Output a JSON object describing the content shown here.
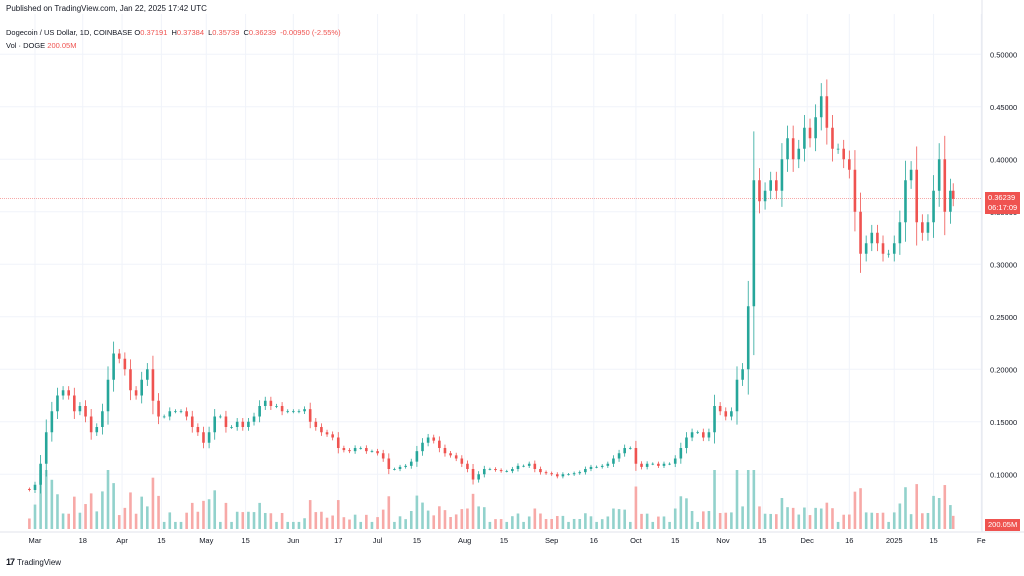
{
  "header": {
    "published": "Published on TradingView.com, Jan 22, 2025 17:42 UTC"
  },
  "legend": {
    "symbol": "Dogecoin / US Dollar, 1D, COINBASE",
    "open_label": "O",
    "open": "0.37191",
    "high_label": "H",
    "high": "0.37384",
    "low_label": "L",
    "low": "0.35739",
    "close_label": "C",
    "close": "0.36239",
    "change": "-0.00950 (-2.55%)",
    "volume_label": "Vol · DOGE",
    "volume": "200.05M"
  },
  "price_tag": {
    "price": "0.36239",
    "countdown": "06:17:09"
  },
  "volume_tag": "200.05M",
  "footer": {
    "logo_mark": "17",
    "logo_text": "TradingView"
  },
  "colors": {
    "up": "#26a69a",
    "down": "#ef5350",
    "up_vol": "#92d2cc",
    "down_vol": "#f7a9a7",
    "grid": "#f0f3fa"
  },
  "chart_data": {
    "type": "candlestick",
    "y_axis_labels": [
      "0.50000",
      "0.45000",
      "0.40000",
      "0.35000",
      "0.30000",
      "0.25000",
      "0.20000",
      "0.15000",
      "0.10000"
    ],
    "y_axis_values": [
      0.5,
      0.45,
      0.4,
      0.35,
      0.3,
      0.25,
      0.2,
      0.15,
      0.1
    ],
    "ylim": [
      0.045,
      0.525
    ],
    "x_axis_labels": [
      "Mar",
      "18",
      "Apr",
      "15",
      "May",
      "15",
      "Jun",
      "17",
      "Jul",
      "15",
      "Aug",
      "15",
      "Sep",
      "16",
      "Oct",
      "15",
      "Nov",
      "15",
      "Dec",
      "16",
      "2025",
      "15",
      "Fe"
    ],
    "x_axis_days": [
      0,
      17,
      31,
      45,
      61,
      75,
      92,
      108,
      122,
      136,
      153,
      167,
      184,
      199,
      214,
      228,
      245,
      259,
      275,
      290,
      306,
      320,
      337
    ],
    "x_start": "2024-03-01",
    "series": [
      {
        "name": "DOGE/USD",
        "points": [
          [
            "2024-02-26",
            0.086
          ],
          [
            "2024-02-28",
            0.085
          ],
          [
            "2024-03-01",
            0.09
          ],
          [
            "2024-03-03",
            0.11
          ],
          [
            "2024-03-05",
            0.14
          ],
          [
            "2024-03-07",
            0.16
          ],
          [
            "2024-03-09",
            0.175
          ],
          [
            "2024-03-11",
            0.18
          ],
          [
            "2024-03-13",
            0.175
          ],
          [
            "2024-03-15",
            0.16
          ],
          [
            "2024-03-17",
            0.165
          ],
          [
            "2024-03-19",
            0.155
          ],
          [
            "2024-03-21",
            0.14
          ],
          [
            "2024-03-23",
            0.145
          ],
          [
            "2024-03-25",
            0.16
          ],
          [
            "2024-03-27",
            0.19
          ],
          [
            "2024-03-29",
            0.215
          ],
          [
            "2024-03-31",
            0.21
          ],
          [
            "2024-04-02",
            0.2
          ],
          [
            "2024-04-04",
            0.18
          ],
          [
            "2024-04-06",
            0.175
          ],
          [
            "2024-04-08",
            0.19
          ],
          [
            "2024-04-10",
            0.2
          ],
          [
            "2024-04-12",
            0.17
          ],
          [
            "2024-04-14",
            0.155
          ],
          [
            "2024-04-16",
            0.155
          ],
          [
            "2024-04-18",
            0.16
          ],
          [
            "2024-04-20",
            0.16
          ],
          [
            "2024-04-22",
            0.16
          ],
          [
            "2024-04-24",
            0.155
          ],
          [
            "2024-04-26",
            0.145
          ],
          [
            "2024-04-28",
            0.14
          ],
          [
            "2024-04-30",
            0.13
          ],
          [
            "2024-05-02",
            0.14
          ],
          [
            "2024-05-04",
            0.155
          ],
          [
            "2024-05-06",
            0.155
          ],
          [
            "2024-05-08",
            0.145
          ],
          [
            "2024-05-10",
            0.145
          ],
          [
            "2024-05-12",
            0.15
          ],
          [
            "2024-05-14",
            0.145
          ],
          [
            "2024-05-16",
            0.15
          ],
          [
            "2024-05-18",
            0.155
          ],
          [
            "2024-05-20",
            0.165
          ],
          [
            "2024-05-22",
            0.17
          ],
          [
            "2024-05-24",
            0.165
          ],
          [
            "2024-05-26",
            0.165
          ],
          [
            "2024-05-28",
            0.16
          ],
          [
            "2024-05-30",
            0.16
          ],
          [
            "2024-06-01",
            0.16
          ],
          [
            "2024-06-03",
            0.16
          ],
          [
            "2024-06-05",
            0.162
          ],
          [
            "2024-06-07",
            0.15
          ],
          [
            "2024-06-09",
            0.145
          ],
          [
            "2024-06-11",
            0.14
          ],
          [
            "2024-06-13",
            0.138
          ],
          [
            "2024-06-15",
            0.135
          ],
          [
            "2024-06-17",
            0.125
          ],
          [
            "2024-06-19",
            0.123
          ],
          [
            "2024-06-21",
            0.122
          ],
          [
            "2024-06-23",
            0.125
          ],
          [
            "2024-06-25",
            0.125
          ],
          [
            "2024-06-27",
            0.122
          ],
          [
            "2024-06-29",
            0.122
          ],
          [
            "2024-07-01",
            0.12
          ],
          [
            "2024-07-03",
            0.115
          ],
          [
            "2024-07-05",
            0.105
          ],
          [
            "2024-07-07",
            0.105
          ],
          [
            "2024-07-09",
            0.107
          ],
          [
            "2024-07-11",
            0.108
          ],
          [
            "2024-07-13",
            0.112
          ],
          [
            "2024-07-15",
            0.122
          ],
          [
            "2024-07-17",
            0.13
          ],
          [
            "2024-07-19",
            0.135
          ],
          [
            "2024-07-21",
            0.132
          ],
          [
            "2024-07-23",
            0.125
          ],
          [
            "2024-07-25",
            0.12
          ],
          [
            "2024-07-27",
            0.118
          ],
          [
            "2024-07-29",
            0.115
          ],
          [
            "2024-07-31",
            0.11
          ],
          [
            "2024-08-02",
            0.105
          ],
          [
            "2024-08-04",
            0.095
          ],
          [
            "2024-08-06",
            0.1
          ],
          [
            "2024-08-08",
            0.105
          ],
          [
            "2024-08-10",
            0.105
          ],
          [
            "2024-08-12",
            0.104
          ],
          [
            "2024-08-14",
            0.103
          ],
          [
            "2024-08-16",
            0.103
          ],
          [
            "2024-08-18",
            0.105
          ],
          [
            "2024-08-20",
            0.108
          ],
          [
            "2024-08-22",
            0.108
          ],
          [
            "2024-08-24",
            0.11
          ],
          [
            "2024-08-26",
            0.105
          ],
          [
            "2024-08-28",
            0.102
          ],
          [
            "2024-08-30",
            0.101
          ],
          [
            "2024-09-01",
            0.1
          ],
          [
            "2024-09-03",
            0.098
          ],
          [
            "2024-09-05",
            0.1
          ],
          [
            "2024-09-07",
            0.1
          ],
          [
            "2024-09-09",
            0.101
          ],
          [
            "2024-09-11",
            0.102
          ],
          [
            "2024-09-13",
            0.105
          ],
          [
            "2024-09-15",
            0.107
          ],
          [
            "2024-09-17",
            0.107
          ],
          [
            "2024-09-19",
            0.108
          ],
          [
            "2024-09-21",
            0.11
          ],
          [
            "2024-09-23",
            0.115
          ],
          [
            "2024-09-25",
            0.12
          ],
          [
            "2024-09-27",
            0.125
          ],
          [
            "2024-09-29",
            0.125
          ],
          [
            "2024-10-01",
            0.11
          ],
          [
            "2024-10-03",
            0.107
          ],
          [
            "2024-10-05",
            0.11
          ],
          [
            "2024-10-07",
            0.11
          ],
          [
            "2024-10-09",
            0.108
          ],
          [
            "2024-10-11",
            0.11
          ],
          [
            "2024-10-13",
            0.11
          ],
          [
            "2024-10-15",
            0.115
          ],
          [
            "2024-10-17",
            0.125
          ],
          [
            "2024-10-19",
            0.135
          ],
          [
            "2024-10-21",
            0.14
          ],
          [
            "2024-10-23",
            0.14
          ],
          [
            "2024-10-25",
            0.135
          ],
          [
            "2024-10-27",
            0.14
          ],
          [
            "2024-10-29",
            0.165
          ],
          [
            "2024-10-31",
            0.16
          ],
          [
            "2024-11-02",
            0.155
          ],
          [
            "2024-11-04",
            0.16
          ],
          [
            "2024-11-06",
            0.19
          ],
          [
            "2024-11-08",
            0.2
          ],
          [
            "2024-11-10",
            0.26
          ],
          [
            "2024-11-12",
            0.38
          ],
          [
            "2024-11-14",
            0.36
          ],
          [
            "2024-11-16",
            0.37
          ],
          [
            "2024-11-18",
            0.38
          ],
          [
            "2024-11-20",
            0.37
          ],
          [
            "2024-11-22",
            0.4
          ],
          [
            "2024-11-24",
            0.42
          ],
          [
            "2024-11-26",
            0.4
          ],
          [
            "2024-11-28",
            0.41
          ],
          [
            "2024-11-30",
            0.43
          ],
          [
            "2024-12-02",
            0.42
          ],
          [
            "2024-12-04",
            0.44
          ],
          [
            "2024-12-06",
            0.46
          ],
          [
            "2024-12-08",
            0.43
          ],
          [
            "2024-12-10",
            0.41
          ],
          [
            "2024-12-12",
            0.41
          ],
          [
            "2024-12-14",
            0.4
          ],
          [
            "2024-12-16",
            0.39
          ],
          [
            "2024-12-18",
            0.35
          ],
          [
            "2024-12-20",
            0.31
          ],
          [
            "2024-12-22",
            0.32
          ],
          [
            "2024-12-24",
            0.33
          ],
          [
            "2024-12-26",
            0.32
          ],
          [
            "2024-12-28",
            0.31
          ],
          [
            "2024-12-30",
            0.31
          ],
          [
            "2025-01-01",
            0.32
          ],
          [
            "2025-01-03",
            0.34
          ],
          [
            "2025-01-05",
            0.38
          ],
          [
            "2025-01-07",
            0.39
          ],
          [
            "2025-01-09",
            0.34
          ],
          [
            "2025-01-11",
            0.33
          ],
          [
            "2025-01-13",
            0.34
          ],
          [
            "2025-01-15",
            0.37
          ],
          [
            "2025-01-17",
            0.4
          ],
          [
            "2025-01-19",
            0.35
          ],
          [
            "2025-01-21",
            0.37
          ],
          [
            "2025-01-22",
            0.36239
          ]
        ]
      }
    ]
  }
}
